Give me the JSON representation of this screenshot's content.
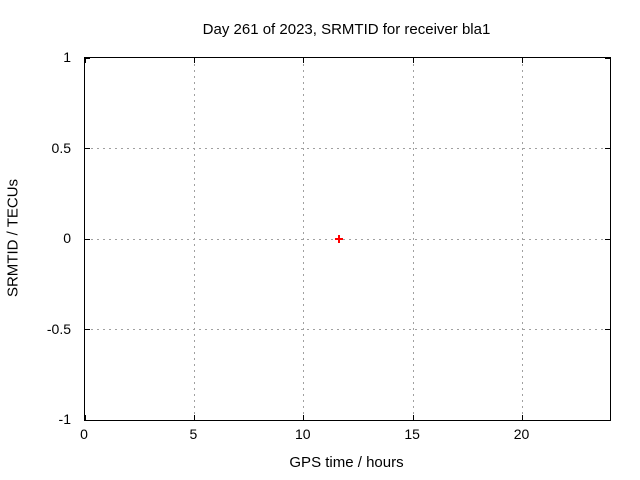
{
  "chart_data": {
    "type": "scatter",
    "title": "Day 261 of 2023, SRMTID for receiver bla1",
    "xlabel": "GPS time / hours",
    "ylabel": "SRMTID / TECUs",
    "xlim": [
      0,
      24
    ],
    "ylim": [
      -1,
      1
    ],
    "xticks": [
      0,
      5,
      10,
      15,
      20
    ],
    "xticklabels": [
      "0",
      "5",
      "10",
      "15",
      "20"
    ],
    "yticks": [
      -1,
      -0.5,
      0,
      0.5,
      1
    ],
    "yticklabels": [
      "-1",
      "-0.5",
      "0",
      "0.5",
      "1"
    ],
    "grid": true,
    "legend": "none",
    "series": [
      {
        "name": "SRMTID",
        "marker": "plus",
        "color": "#ff0000",
        "points": [
          {
            "x": 11.6,
            "y": 0.0
          }
        ]
      }
    ],
    "colors": {
      "grid": "#a0a0a0",
      "axis": "#000000",
      "background": "#ffffff",
      "text": "#000000"
    }
  }
}
